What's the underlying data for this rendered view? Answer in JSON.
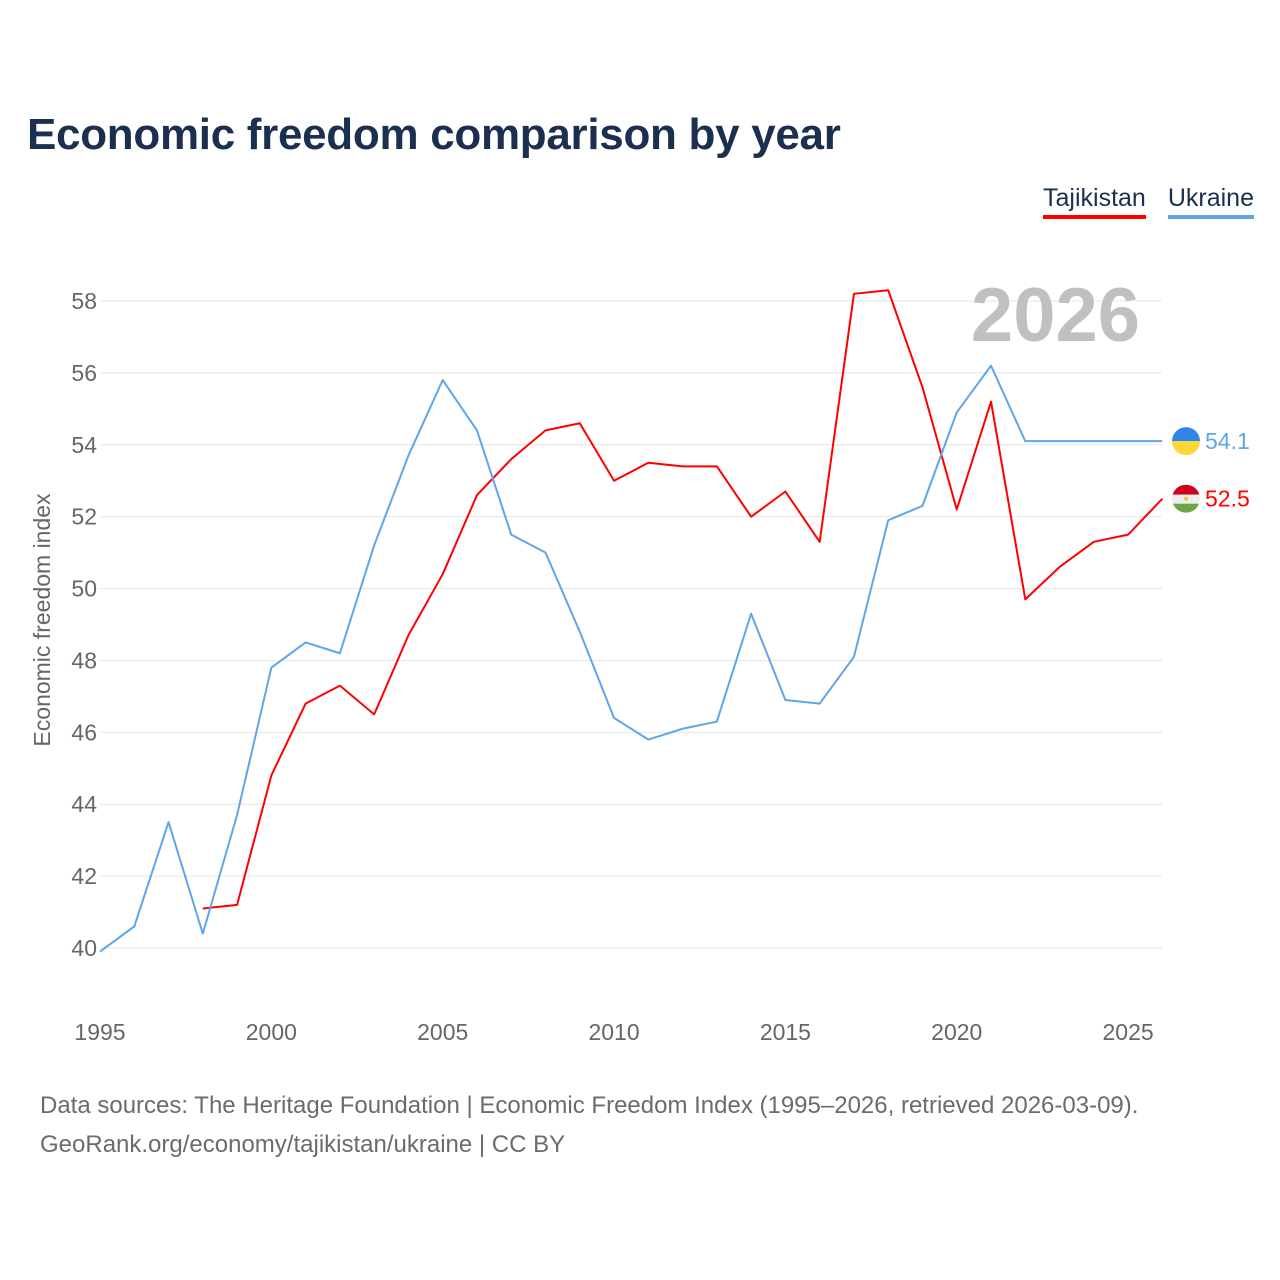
{
  "title": "Economic freedom comparison by year",
  "legend": [
    {
      "label": "Tajikistan",
      "color": "#ff0000"
    },
    {
      "label": "Ukraine",
      "color": "#5ea6e8"
    }
  ],
  "source_line1": "Data sources: The Heritage Foundation | Economic Freedom Index (1995–2026, retrieved 2026-03-09).",
  "source_line2": "GeoRank.org/economy/tajikistan/ukraine | CC BY",
  "chart_data": {
    "type": "line",
    "title": "Economic freedom comparison by year",
    "ylabel": "Economic freedom index",
    "xlabel": "",
    "year_watermark": "2026",
    "xlim": [
      1995,
      2026
    ],
    "ylim": [
      40,
      58
    ],
    "xticks": [
      1995,
      2000,
      2005,
      2010,
      2015,
      2020,
      2025
    ],
    "yticks": [
      40,
      42,
      44,
      46,
      48,
      50,
      52,
      54,
      56,
      58
    ],
    "grid": true,
    "legend_position": "top-right",
    "series": [
      {
        "name": "Tajikistan",
        "color": "#ff0000",
        "end_label": "52.5",
        "x": [
          1998,
          1999,
          2000,
          2001,
          2002,
          2003,
          2004,
          2005,
          2006,
          2007,
          2008,
          2009,
          2010,
          2011,
          2012,
          2013,
          2014,
          2015,
          2016,
          2017,
          2018,
          2019,
          2020,
          2021,
          2022,
          2023,
          2024,
          2025,
          2026
        ],
        "values": [
          41.1,
          41.2,
          44.8,
          46.8,
          47.3,
          46.5,
          48.7,
          50.4,
          52.6,
          53.6,
          54.4,
          54.6,
          53.0,
          53.5,
          53.4,
          53.4,
          52.0,
          52.7,
          51.3,
          58.2,
          58.3,
          55.6,
          52.2,
          55.2,
          49.7,
          50.6,
          51.3,
          51.5,
          52.5
        ]
      },
      {
        "name": "Ukraine",
        "color": "#5ea6e8",
        "end_label": "54.1",
        "x": [
          1995,
          1996,
          1997,
          1998,
          1999,
          2000,
          2001,
          2002,
          2003,
          2004,
          2005,
          2006,
          2007,
          2008,
          2009,
          2010,
          2011,
          2012,
          2013,
          2014,
          2015,
          2016,
          2017,
          2018,
          2019,
          2020,
          2021,
          2022,
          2023,
          2024,
          2025,
          2026
        ],
        "values": [
          39.9,
          40.6,
          43.5,
          40.4,
          43.7,
          47.8,
          48.5,
          48.2,
          51.2,
          53.7,
          55.8,
          54.4,
          51.5,
          51.0,
          48.8,
          46.4,
          45.8,
          46.1,
          46.3,
          49.3,
          46.9,
          46.8,
          48.1,
          51.9,
          52.3,
          54.9,
          56.2,
          54.1,
          54.1,
          54.1,
          54.1,
          54.1
        ]
      }
    ]
  }
}
